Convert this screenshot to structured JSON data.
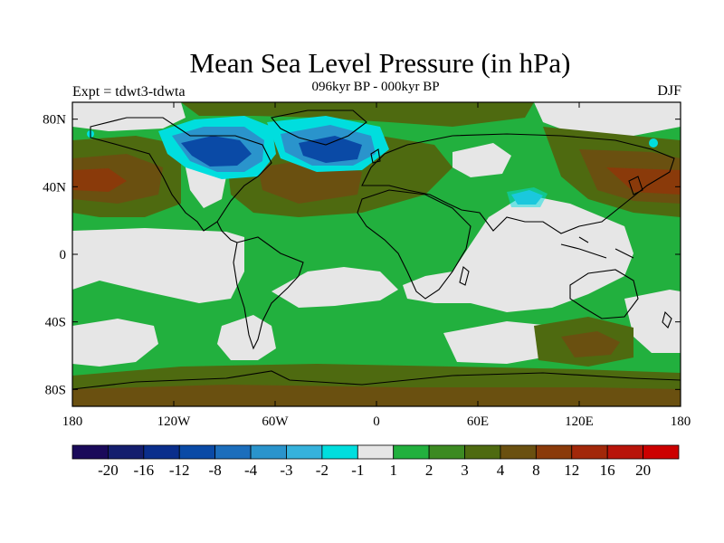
{
  "title": "Mean Sea Level Pressure (in hPa)",
  "subtitle": "096kyr BP - 000kyr BP",
  "expt_label": "Expt = tdwt3-tdwta",
  "season": "DJF",
  "y_axis": {
    "ticks": [
      {
        "value": 80,
        "label": "80N"
      },
      {
        "value": 40,
        "label": "40N"
      },
      {
        "value": 0,
        "label": "0"
      },
      {
        "value": -40,
        "label": "40S"
      },
      {
        "value": -80,
        "label": "80S"
      }
    ]
  },
  "x_axis": {
    "ticks": [
      {
        "value": -180,
        "label": "180"
      },
      {
        "value": -120,
        "label": "120W"
      },
      {
        "value": -60,
        "label": "60W"
      },
      {
        "value": 0,
        "label": "0"
      },
      {
        "value": 60,
        "label": "60E"
      },
      {
        "value": 120,
        "label": "120E"
      },
      {
        "value": 180,
        "label": "180"
      }
    ]
  },
  "colorbar": {
    "colors": [
      "#1a0a5a",
      "#141e6e",
      "#0a2e8c",
      "#0a4aa6",
      "#1c6ebc",
      "#2a94cc",
      "#35b2dc",
      "#00dede",
      "#e6e6e6",
      "#22b03e",
      "#3c8a22",
      "#4e6a10",
      "#6a5010",
      "#8a3a0a",
      "#a2280a",
      "#b8140a",
      "#cc0000"
    ],
    "labels": [
      "-20",
      "-16",
      "-12",
      "-8",
      "-4",
      "-3",
      "-2",
      "-1",
      "1",
      "2",
      "3",
      "4",
      "8",
      "12",
      "16",
      "20"
    ]
  },
  "chart_data": {
    "type": "heatmap",
    "title": "Mean Sea Level Pressure (in hPa)",
    "subtitle": "096kyr BP - 000kyr BP",
    "projection": "cylindrical equidistant",
    "xlim": [
      -180,
      180
    ],
    "ylim": [
      -90,
      90
    ],
    "units": "hPa",
    "levels": [
      -20,
      -16,
      -12,
      -8,
      -4,
      -3,
      -2,
      -1,
      1,
      2,
      3,
      4,
      8,
      12,
      16,
      20
    ],
    "regions": [
      {
        "name": "North American ice sheet low",
        "lon": -100,
        "lat": 63,
        "value": -12
      },
      {
        "name": "Greenland / N Atlantic low",
        "lon": -25,
        "lat": 62,
        "value": -12
      },
      {
        "name": "Tibetan low",
        "lon": 90,
        "lat": 34,
        "value": -2
      },
      {
        "name": "North Pacific high (W)",
        "lon": -170,
        "lat": 40,
        "value": 8
      },
      {
        "name": "North Pacific high (E)",
        "lon": 160,
        "lat": 40,
        "value": 8
      },
      {
        "name": "Eurasian high",
        "lon": -30,
        "lat": 40,
        "value": 4
      },
      {
        "name": "Southern Pacific high",
        "lon": 120,
        "lat": -52,
        "value": 4
      },
      {
        "name": "Antarctic high band",
        "lon": 0,
        "lat": -85,
        "value": 4
      }
    ]
  }
}
